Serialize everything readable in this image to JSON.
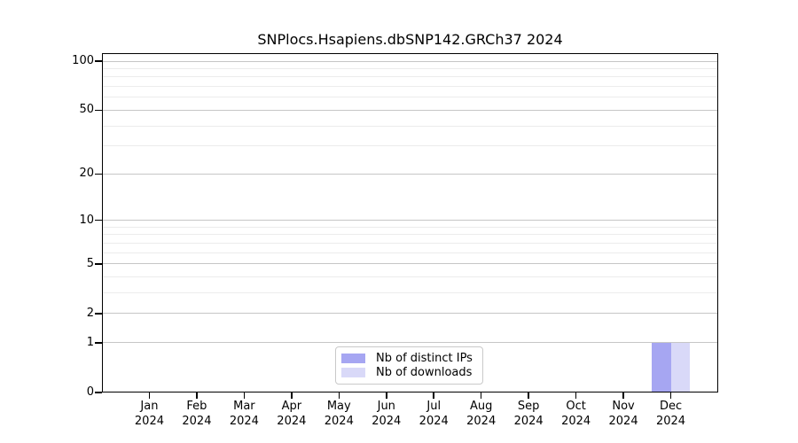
{
  "chart_data": {
    "type": "bar",
    "title": "SNPlocs.Hsapiens.dbSNP142.GRCh37 2024",
    "categories": [
      "Jan",
      "Feb",
      "Mar",
      "Apr",
      "May",
      "Jun",
      "Jul",
      "Aug",
      "Sep",
      "Oct",
      "Nov",
      "Dec"
    ],
    "x_sublabel": "2024",
    "series": [
      {
        "name": "Nb of distinct IPs",
        "color": "#a6a6f2",
        "values": [
          0,
          0,
          0,
          0,
          0,
          0,
          0,
          0,
          0,
          0,
          0,
          1
        ]
      },
      {
        "name": "Nb of downloads",
        "color": "#d9d9f8",
        "values": [
          0,
          0,
          0,
          0,
          0,
          0,
          0,
          0,
          0,
          0,
          0,
          1
        ]
      }
    ],
    "y_axis": {
      "scale": "log10(1+v)",
      "ticks": [
        0,
        1,
        2,
        5,
        10,
        20,
        50,
        100
      ],
      "minor_gridlines": [
        3,
        4,
        6,
        7,
        8,
        9,
        30,
        40,
        60,
        70,
        80,
        90
      ],
      "max": 112
    },
    "legend_position": "bottom-center",
    "grid": true
  }
}
